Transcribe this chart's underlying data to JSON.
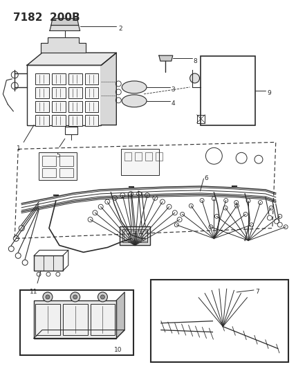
{
  "title": "7182  200B",
  "bg_color": "#ffffff",
  "line_color": "#2a2a2a",
  "fig_width": 4.28,
  "fig_height": 5.33,
  "dpi": 100,
  "label_size": 6.5
}
